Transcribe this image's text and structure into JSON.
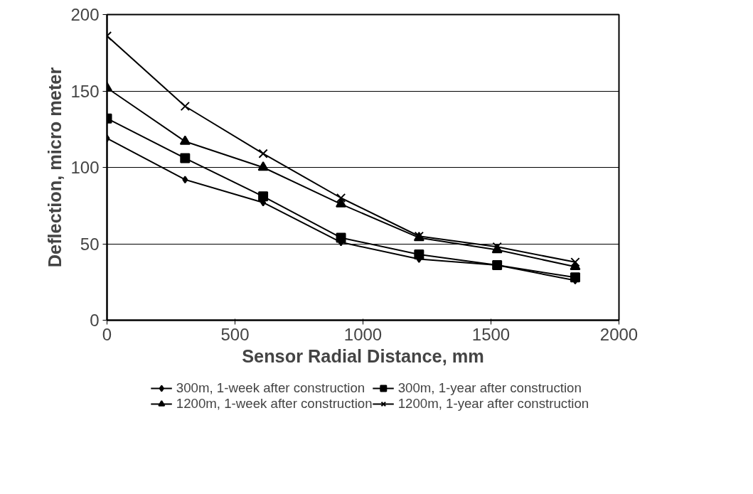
{
  "chart_data": {
    "type": "line",
    "xlabel": "Sensor Radial Distance, mm",
    "ylabel": "Deflection, micro meter",
    "x": [
      0,
      305,
      610,
      914,
      1219,
      1524,
      1829
    ],
    "series": [
      {
        "name": "300m, 1-week after construction",
        "color": "#000000",
        "marker": "diamond",
        "values": [
          119,
          92,
          77,
          51,
          40,
          36,
          26
        ]
      },
      {
        "name": "300m, 1-year after construction",
        "color": "#000000",
        "marker": "square",
        "values": [
          132,
          106,
          81,
          54,
          43,
          36,
          28
        ]
      },
      {
        "name": "1200m, 1-week after construction",
        "color": "#000000",
        "marker": "triangle",
        "values": [
          152,
          117,
          100,
          76,
          54,
          46,
          35
        ]
      },
      {
        "name": "1200m, 1-year after construction",
        "color": "#000000",
        "marker": "cross",
        "values": [
          186,
          140,
          109,
          80,
          55,
          48,
          38
        ]
      }
    ],
    "xlim": [
      0,
      2000
    ],
    "xticks": [
      0,
      500,
      1000,
      1500,
      2000
    ],
    "ylim": [
      0,
      200
    ],
    "yticks": [
      0,
      50,
      100,
      150,
      200
    ],
    "grid": "y",
    "legend": "bottom",
    "line_style": "solid"
  }
}
